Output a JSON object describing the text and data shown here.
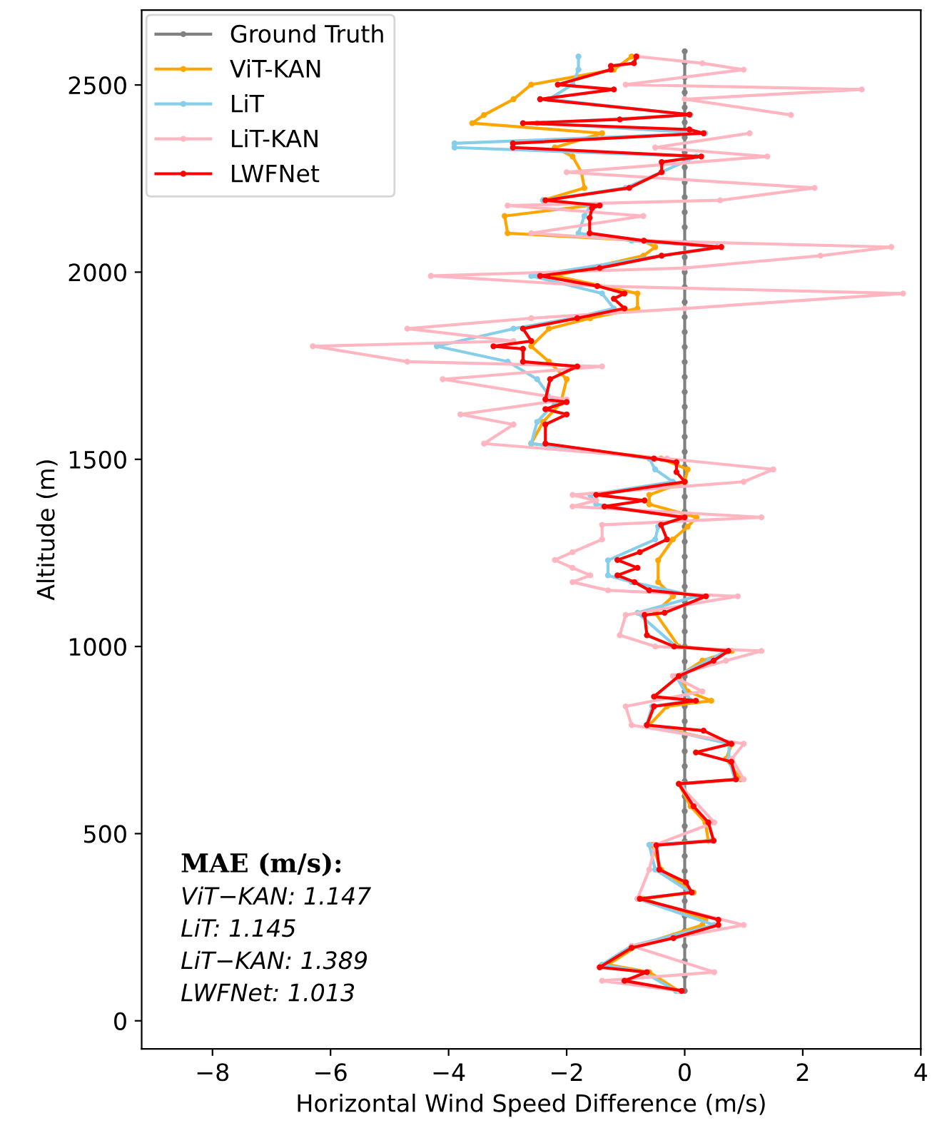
{
  "chart_data": {
    "type": "line",
    "orientation": "horizontal",
    "xlabel": "Horizontal Wind Speed Difference (m/s)",
    "ylabel": "Altitude (m)",
    "xlim": [
      -9.2,
      4.0
    ],
    "xticks": [
      {
        "value": -8,
        "label": "−8"
      },
      {
        "value": -6,
        "label": "−6"
      },
      {
        "value": -4,
        "label": "−4"
      },
      {
        "value": -2,
        "label": "−2"
      },
      0,
      2,
      4
    ],
    "ylim": [
      -75,
      2700
    ],
    "yticks": [
      0,
      500,
      1000,
      1500,
      2000,
      2500
    ],
    "legend": "top left",
    "marker": "circle",
    "line_style": "solid",
    "grid": false,
    "annotations": [
      "MAE (m/s):",
      "ViT−KAN: 1.147",
      "LiT: 1.145",
      "LiT−KAN: 1.389",
      "LWFNet: 1.013"
    ],
    "series": [
      {
        "name": "Ground Truth",
        "color": "#808080",
        "x": [
          80,
          120,
          160,
          200,
          240,
          280,
          320,
          360,
          400,
          440,
          480,
          520,
          560,
          600,
          640,
          680,
          720,
          760,
          800,
          840,
          880,
          920,
          960,
          1000,
          1040,
          1080,
          1120,
          1160,
          1200,
          1240,
          1280,
          1320,
          1360,
          1400,
          1440,
          1480,
          1520,
          1560,
          1600,
          1640,
          1680,
          1720,
          1760,
          1800,
          1840,
          1880,
          1920,
          1960,
          2000,
          2040,
          2080,
          2120,
          2160,
          2200,
          2240,
          2280,
          2320,
          2360,
          2400,
          2440,
          2480,
          2520,
          2560,
          2590
        ],
        "values": [
          0,
          0,
          0,
          0,
          0,
          0,
          0,
          0,
          0,
          0,
          0,
          0,
          0,
          0,
          0,
          0,
          0,
          0,
          0,
          0,
          0,
          0,
          0,
          0,
          0,
          0,
          0,
          0,
          0,
          0,
          0,
          0,
          0,
          0,
          0,
          0,
          0,
          0,
          0,
          0,
          0,
          0,
          0,
          0,
          0,
          0,
          0,
          0,
          0,
          0,
          0,
          0,
          0,
          0,
          0,
          0,
          0,
          0,
          0,
          0,
          0,
          0,
          0,
          0
        ]
      },
      {
        "name": "ViT-KAN",
        "color": "#ffa500",
        "x": [
          80,
          130,
          150,
          200,
          256,
          270,
          326,
          343,
          404,
          470,
          481,
          530,
          573,
          633,
          645,
          700,
          740,
          790,
          840,
          855,
          880,
          921,
          962,
          988,
          1000,
          1090,
          1134,
          1172,
          1230,
          1286,
          1320,
          1345,
          1380,
          1405,
          1440,
          1473,
          1502,
          1542,
          1600,
          1650,
          1714,
          1761,
          1802,
          1849,
          1877,
          1903,
          1943,
          1990,
          2044,
          2067,
          2084,
          2104,
          2150,
          2178,
          2192,
          2225,
          2267,
          2309,
          2333,
          2371,
          2398,
          2420,
          2462,
          2501,
          2541,
          2576
        ],
        "values": [
          -0.1,
          -0.6,
          -1.3,
          -0.8,
          0.3,
          0.35,
          -0.7,
          0.15,
          -0.4,
          -0.55,
          0.4,
          0.35,
          0.1,
          -0.1,
          0.95,
          0.7,
          0.8,
          -0.6,
          -0.3,
          0.45,
          0.05,
          -0.1,
          0.3,
          0.8,
          -0.1,
          -0.5,
          -0.2,
          -0.45,
          -0.45,
          -0.2,
          0.05,
          0.2,
          -0.6,
          -0.6,
          0.0,
          0.05,
          -0.4,
          -2.6,
          -2.4,
          -2.1,
          -2.0,
          -2.3,
          -2.6,
          -2.3,
          -1.6,
          -0.8,
          -0.8,
          -2.2,
          -0.7,
          -0.5,
          -0.7,
          -3.0,
          -3.05,
          -1.6,
          -2.4,
          -1.7,
          -1.75,
          -1.9,
          -2.2,
          -1.4,
          -3.6,
          -3.4,
          -2.9,
          -2.6,
          -1.2,
          -0.9
        ]
      },
      {
        "name": "LiT",
        "color": "#87ceeb",
        "x": [
          80,
          130,
          150,
          200,
          256,
          326,
          343,
          404,
          470,
          481,
          530,
          573,
          633,
          645,
          700,
          740,
          790,
          840,
          855,
          921,
          962,
          988,
          1000,
          1090,
          1134,
          1172,
          1190,
          1230,
          1286,
          1320,
          1345,
          1380,
          1405,
          1440,
          1473,
          1502,
          1542,
          1600,
          1650,
          1714,
          1761,
          1802,
          1849,
          1877,
          1903,
          1943,
          1990,
          2044,
          2067,
          2084,
          2104,
          2150,
          2178,
          2192,
          2225,
          2267,
          2309,
          2333,
          2344,
          2371,
          2398,
          2420,
          2462,
          2501,
          2541,
          2576
        ],
        "values": [
          -0.15,
          -0.7,
          -1.4,
          -0.9,
          0.5,
          -0.8,
          0.1,
          -0.5,
          -0.6,
          0.45,
          null,
          0.15,
          -0.05,
          0.85,
          0.75,
          0.75,
          -0.65,
          -0.55,
          0.1,
          -0.15,
          0.4,
          0.7,
          -0.15,
          -0.8,
          0.2,
          -0.9,
          -1.3,
          -1.3,
          -0.5,
          -0.45,
          -0.05,
          -1.5,
          -1.6,
          -0.2,
          -0.5,
          -0.6,
          -2.6,
          -2.5,
          -2.2,
          -2.5,
          -3.0,
          -4.2,
          -2.9,
          -1.9,
          -1.2,
          -1.4,
          -2.6,
          -0.4,
          0.55,
          -0.9,
          -1.8,
          -1.7,
          -1.6,
          -2.4,
          -1.0,
          -0.4,
          0.2,
          -3.9,
          -3.9,
          0.35,
          -2.5,
          0.1,
          -2.3,
          -1.9,
          -1.8,
          -1.8
        ]
      },
      {
        "name": "LiT-KAN",
        "color": "#ffb6c1",
        "x": [
          80,
          107,
          130,
          200,
          256,
          326,
          404,
          470,
          530,
          633,
          645,
          700,
          740,
          790,
          840,
          880,
          921,
          962,
          988,
          1000,
          1030,
          1084,
          1134,
          1150,
          1172,
          1190,
          1210,
          1231,
          1252,
          1286,
          1325,
          1345,
          1374,
          1390,
          1405,
          1440,
          1473,
          1502,
          1542,
          1593,
          1620,
          1660,
          1714,
          1748,
          1761,
          1802,
          1816,
          1849,
          1877,
          1903,
          1943,
          1963,
          1990,
          2011,
          2044,
          2067,
          2084,
          2104,
          2150,
          2178,
          2192,
          2225,
          2267,
          2309,
          2333,
          2371,
          2381,
          2398,
          2420,
          2462,
          2488,
          2501,
          2541,
          2558,
          2576
        ],
        "values": [
          -0.1,
          -1.4,
          0.5,
          -0.9,
          1.0,
          -0.8,
          -0.6,
          -0.5,
          0.5,
          -0.1,
          1.0,
          0.8,
          1.0,
          -0.9,
          -1.0,
          0.3,
          -0.2,
          0.7,
          1.3,
          -0.5,
          -1.1,
          -1.0,
          0.9,
          -1.3,
          -1.9,
          -1.6,
          -1.9,
          -2.2,
          -1.9,
          -1.4,
          -1.4,
          1.3,
          -1.9,
          -1.5,
          -1.9,
          1.0,
          1.5,
          -0.3,
          -3.4,
          -2.9,
          -3.8,
          -2.0,
          -4.1,
          -1.4,
          -4.7,
          -6.3,
          -2.9,
          -4.7,
          -2.6,
          0.0,
          3.7,
          -1.5,
          -4.3,
          0.0,
          2.3,
          3.5,
          -0.7,
          -2.6,
          -0.7,
          -3.0,
          0.6,
          2.2,
          -2.0,
          1.4,
          -0.5,
          1.1,
          null,
          null,
          1.8,
          0.0,
          3.0,
          -1.0,
          1.0,
          0.3,
          -0.8
        ]
      },
      {
        "name": "LWFNet",
        "color": "#ff0000",
        "x": [
          80,
          107,
          130,
          143,
          195,
          221,
          256,
          270,
          326,
          343,
          370,
          404,
          469,
          481,
          530,
          573,
          633,
          645,
          692,
          717,
          740,
          775,
          790,
          840,
          855,
          866,
          921,
          962,
          988,
          1000,
          1030,
          1084,
          1090,
          1134,
          1150,
          1172,
          1190,
          1210,
          1231,
          1252,
          1286,
          1325,
          1345,
          1374,
          1390,
          1405,
          1440,
          1466,
          1492,
          1502,
          1542,
          1593,
          1620,
          1634,
          1653,
          1660,
          1714,
          1748,
          1761,
          1795,
          1802,
          1816,
          1849,
          1877,
          1903,
          1929,
          1943,
          1963,
          1990,
          2011,
          2044,
          2067,
          2084,
          2104,
          2145,
          2171,
          2178,
          2192,
          2225,
          2267,
          2294,
          2309,
          2333,
          2344,
          2371,
          2381,
          2398,
          2408,
          2421,
          2462,
          2488,
          2501,
          2541,
          2551,
          2558,
          2576
        ],
        "values": [
          -0.05,
          -1.02,
          -0.64,
          -1.44,
          -0.9,
          -0.19,
          0.57,
          0.57,
          -0.76,
          0.12,
          0.02,
          -0.43,
          -0.48,
          0.49,
          0.4,
          0.15,
          -0.1,
          0.87,
          0.79,
          0.19,
          0.79,
          0.32,
          -0.64,
          -0.52,
          0.19,
          -0.52,
          -0.1,
          0.49,
          0.74,
          -0.18,
          -0.64,
          -0.68,
          -0.34,
          0.36,
          -0.6,
          -0.85,
          -1.14,
          -0.8,
          -1.14,
          -0.76,
          -0.3,
          -0.4,
          0.0,
          -1.36,
          -0.68,
          -1.5,
          0.0,
          -0.14,
          -0.14,
          -0.52,
          -2.36,
          -2.36,
          -2.0,
          -2.36,
          -2.0,
          -2.36,
          -2.28,
          -1.82,
          -2.74,
          -2.74,
          -3.24,
          -2.6,
          -2.74,
          -1.82,
          -1.02,
          -1.2,
          -1.02,
          -1.48,
          -2.45,
          -1.44,
          -0.39,
          0.62,
          -0.69,
          -1.61,
          -1.61,
          -1.57,
          -1.44,
          -2.36,
          -0.94,
          -0.39,
          -0.39,
          0.28,
          -2.91,
          -2.91,
          0.32,
          0.08,
          -2.74,
          -1.1,
          0.08,
          -2.45,
          -1.2,
          -2.15,
          -1.25,
          -1.25,
          -0.86,
          -0.82
        ]
      }
    ]
  }
}
